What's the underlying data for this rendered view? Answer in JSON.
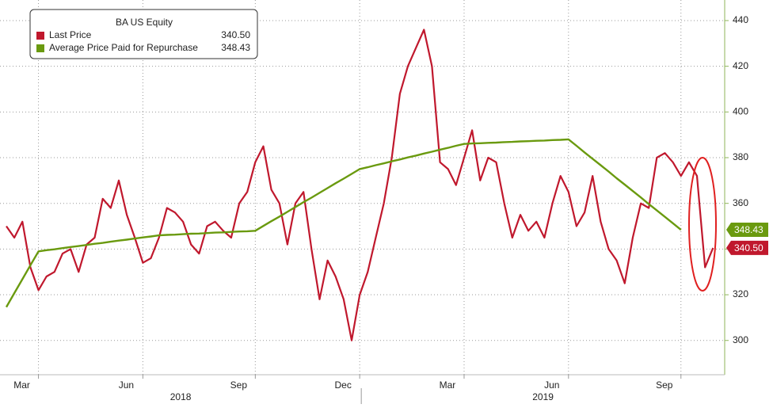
{
  "chart_data": {
    "type": "line",
    "legend_title": "BA US Equity",
    "categories": [
      null,
      null,
      null,
      null,
      "Mar",
      null,
      null,
      null,
      null,
      null,
      null,
      null,
      null,
      null,
      null,
      null,
      null,
      "Jun",
      null,
      null,
      null,
      null,
      null,
      null,
      null,
      null,
      null,
      null,
      null,
      null,
      null,
      "Sep",
      null,
      null,
      null,
      null,
      null,
      null,
      null,
      null,
      null,
      null,
      null,
      null,
      "Dec",
      null,
      null,
      null,
      null,
      null,
      null,
      null,
      null,
      null,
      null,
      null,
      null,
      "Mar",
      null,
      null,
      null,
      null,
      null,
      null,
      null,
      null,
      null,
      null,
      null,
      null,
      "Jun",
      null,
      null,
      null,
      null,
      null,
      null,
      null,
      null,
      null,
      null,
      null,
      null,
      null,
      "Sep",
      null,
      null,
      null,
      null
    ],
    "x_groups": [
      "2018",
      "2019"
    ],
    "series": [
      {
        "name": "Last Price",
        "color": "#c0182d",
        "last_label": "340.50",
        "values": [
          350,
          345,
          352,
          332,
          322,
          328,
          330,
          338,
          340,
          330,
          342,
          345,
          362,
          358,
          370,
          355,
          345,
          334,
          336,
          345,
          358,
          356,
          352,
          342,
          338,
          350,
          352,
          348,
          345,
          360,
          365,
          378,
          385,
          366,
          360,
          342,
          360,
          365,
          340,
          318,
          335,
          328,
          318,
          300,
          320,
          330,
          345,
          360,
          380,
          408,
          420,
          428,
          436,
          420,
          378,
          375,
          368,
          380,
          392,
          370,
          380,
          378,
          360,
          345,
          355,
          348,
          352,
          345,
          360,
          372,
          365,
          350,
          356,
          372,
          352,
          340,
          335,
          325,
          345,
          360,
          358,
          380,
          382,
          378,
          372,
          378,
          372,
          332,
          340.5
        ]
      },
      {
        "name": "Average Price Paid for Repurchase",
        "color": "#6a9a0f",
        "last_label": "348.43",
        "values": [
          314.6,
          320.7,
          326.8,
          332.9,
          339,
          339.5,
          339.9,
          340.4,
          340.9,
          341.3,
          341.8,
          342.3,
          342.7,
          343.2,
          343.7,
          344.1,
          344.6,
          345.1,
          345.5,
          346,
          346.2,
          346.3,
          346.5,
          346.7,
          346.8,
          347,
          347.2,
          347.3,
          347.5,
          347.7,
          347.8,
          348,
          350.1,
          352.2,
          354.2,
          356.3,
          358.4,
          360.5,
          362.5,
          364.6,
          366.7,
          368.8,
          370.8,
          372.9,
          375,
          375.8,
          376.7,
          377.5,
          378.4,
          379.2,
          380.1,
          380.9,
          381.8,
          382.6,
          383.5,
          384.3,
          385.2,
          386,
          386.2,
          386.3,
          386.5,
          386.6,
          386.8,
          386.9,
          387.1,
          387.2,
          387.4,
          387.5,
          387.7,
          387.8,
          388,
          385.2,
          382.3,
          379.5,
          376.7,
          373.9,
          371,
          368.2,
          365.4,
          362.6,
          359.7,
          356.9,
          354.1,
          351.3,
          348.43,
          null,
          null,
          null,
          null
        ]
      }
    ],
    "ylim": [
      285,
      449
    ],
    "yticks": [
      300,
      320,
      340,
      360,
      380,
      400,
      420,
      440
    ],
    "grid": true
  }
}
